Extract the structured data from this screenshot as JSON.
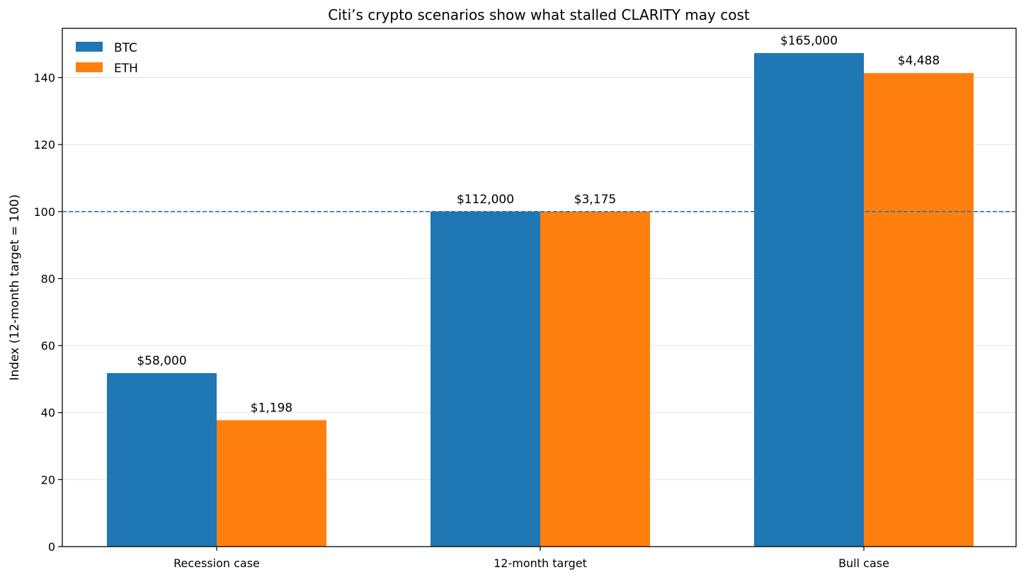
{
  "chart_data": {
    "type": "bar",
    "title": "Citi’s crypto scenarios show what stalled CLARITY may cost",
    "xlabel": "",
    "ylabel": "Index (12-month target = 100)",
    "categories": [
      "Recession case",
      "12-month target",
      "Bull case"
    ],
    "series": [
      {
        "name": "BTC",
        "color": "#1f77b4",
        "values": [
          51.79,
          100,
          147.32
        ],
        "labels": [
          "$58,000",
          "$112,000",
          "$165,000"
        ]
      },
      {
        "name": "ETH",
        "color": "#ff7f0e",
        "values": [
          37.73,
          100,
          141.35
        ],
        "labels": [
          "$1,198",
          "$3,175",
          "$4,488"
        ]
      }
    ],
    "ylim": [
      0,
      154.7
    ],
    "yticks": [
      0,
      20,
      40,
      60,
      80,
      100,
      120,
      140
    ],
    "reference_line": {
      "y": 100,
      "style": "dashed",
      "color": "#1f77b4"
    },
    "grid": "horizontal",
    "legend_placement": "top-left"
  }
}
